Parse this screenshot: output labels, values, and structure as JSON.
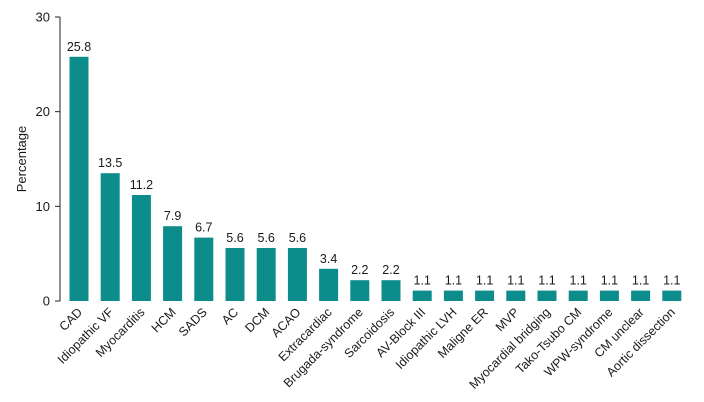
{
  "chart_data": {
    "type": "bar",
    "title": "",
    "xlabel": "",
    "ylabel": "Percentage",
    "ylim": [
      0,
      30
    ],
    "yticks": [
      0,
      10,
      20,
      30
    ],
    "grid": false,
    "bar_color": "#0d8c8c",
    "categories": [
      "CAD",
      "Idiopathic VF",
      "Myocarditis",
      "HCM",
      "SADS",
      "AC",
      "DCM",
      "ACAO",
      "Extracardiac",
      "Brugada-syndrome",
      "Sarcoidosis",
      "AV-Block III",
      "Idiopathic LVH",
      "Maligne ER",
      "MVP",
      "Myocardial bridging",
      "Tako-Tsubo CM",
      "WPW-syndrome",
      "CM unclear",
      "Aortic dissection"
    ],
    "values": [
      25.8,
      13.5,
      11.2,
      7.9,
      6.7,
      5.6,
      5.6,
      5.6,
      3.4,
      2.2,
      2.2,
      1.1,
      1.1,
      1.1,
      1.1,
      1.1,
      1.1,
      1.1,
      1.1,
      1.1
    ],
    "data_labels": [
      "25.8",
      "13.5",
      "11.2",
      "7.9",
      "6.7",
      "5.6",
      "5.6",
      "5.6",
      "3.4",
      "2.2",
      "2.2",
      "1.1",
      "1.1",
      "1.1",
      "1.1",
      "1.1",
      "1.1",
      "1.1",
      "1.1",
      "1.1"
    ]
  }
}
